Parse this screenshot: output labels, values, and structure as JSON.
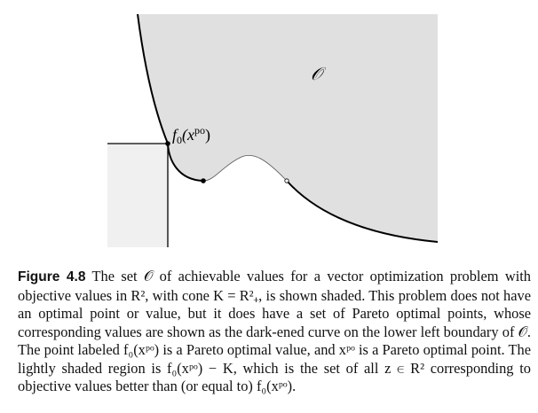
{
  "figure": {
    "region_label": "𝒪",
    "point_label": {
      "prefix": "f",
      "sub": "0",
      "open": "(x",
      "sup": "po",
      "close": ")"
    },
    "colors": {
      "achievable_region": "#e0e0e0",
      "cone_region": "#f0f0f0",
      "curve": "#000000",
      "point_fill": "#000000",
      "open_point_fill": "#ffffff"
    }
  },
  "caption": {
    "label": "Figure 4.8",
    "lines": [
      "The set 𝒪 of achievable values for a vector optimization problem",
      "with objective values in R², with cone K = R²₊, is shown shaded. This",
      "problem does not have an optimal point or value, but it does have a set of",
      "Pareto optimal points, whose corresponding values are shown as the dark-",
      "ened curve on the lower left boundary of 𝒪. The point labeled f₀(xᵖᵒ)",
      "is a Pareto optimal value, and xᵖᵒ is a Pareto optimal point. The lightly",
      "shaded region is f₀(xᵖᵒ) − K, which is the set of all z ∈ R² corresponding",
      "to objective values better than (or equal to) f₀(xᵖᵒ)."
    ]
  }
}
